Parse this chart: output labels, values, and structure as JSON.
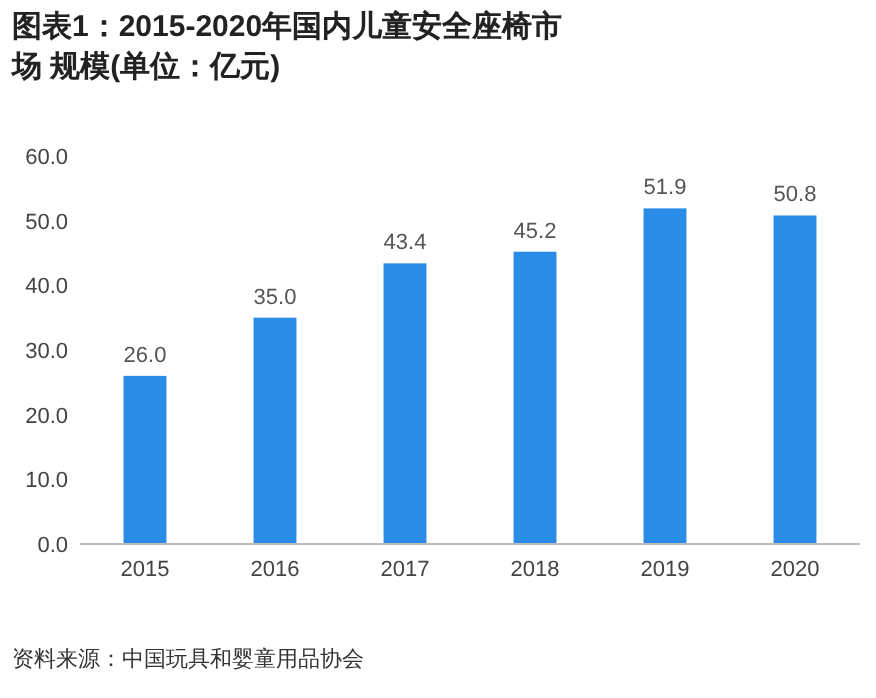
{
  "chart_data": {
    "type": "bar",
    "title": "图表1：2015-2020年国内儿童安全座椅市场 规模(单位：亿元)",
    "categories": [
      "2015",
      "2016",
      "2017",
      "2018",
      "2019",
      "2020"
    ],
    "values": [
      26.0,
      35.0,
      43.4,
      45.2,
      51.9,
      50.8
    ],
    "value_labels": [
      "26.0",
      "35.0",
      "43.4",
      "45.2",
      "51.9",
      "50.8"
    ],
    "color": "#2b8ce8",
    "ylim": [
      0,
      60
    ],
    "yticks": [
      {
        "value": 0,
        "label": "0.0"
      },
      {
        "value": 10,
        "label": "10.0"
      },
      {
        "value": 20,
        "label": "20.0"
      },
      {
        "value": 30,
        "label": "30.0"
      },
      {
        "value": 40,
        "label": "40.0"
      },
      {
        "value": 50,
        "label": "50.0"
      },
      {
        "value": 60,
        "label": "60.0"
      }
    ],
    "grid": false,
    "annotations": [
      "资料来源：中国玩具和婴童用品协会"
    ]
  }
}
